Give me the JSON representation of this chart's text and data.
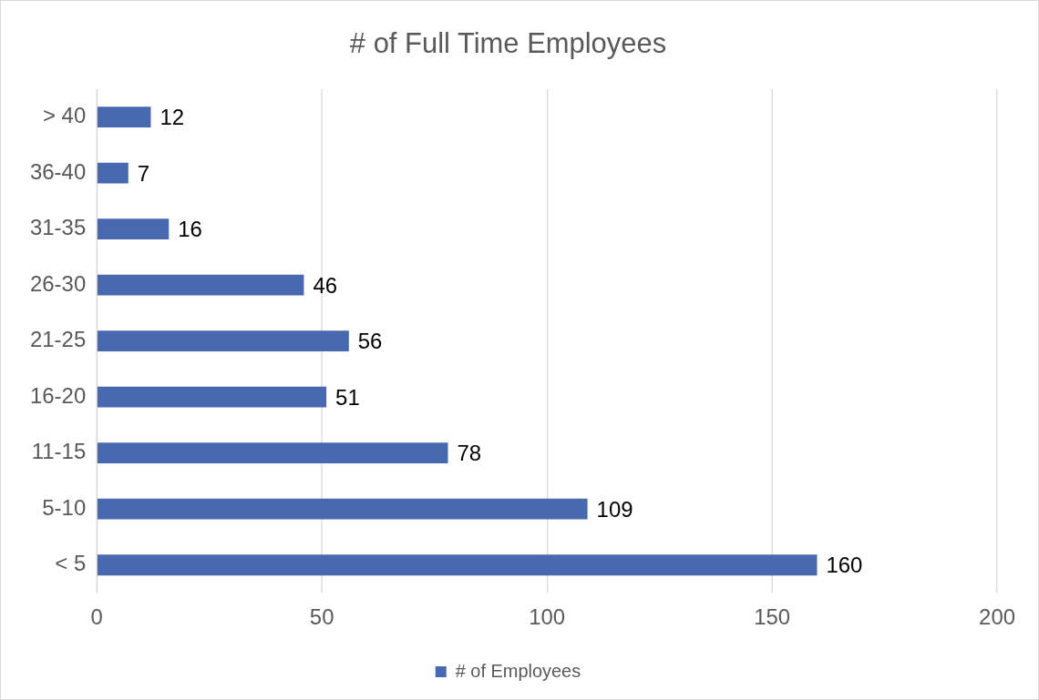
{
  "chart_data": {
    "type": "bar",
    "title": "# of Full Time Employees",
    "orientation": "horizontal",
    "categories": [
      "> 40",
      "36-40",
      "31-35",
      "26-30",
      "21-25",
      "16-20",
      "11-15",
      "5-10",
      "< 5"
    ],
    "series": [
      {
        "name": "# of Employees",
        "color": "#4868b0",
        "values": [
          12,
          7,
          16,
          46,
          56,
          51,
          78,
          109,
          160
        ]
      }
    ],
    "xlim": [
      0,
      200
    ],
    "xticks": [
      0,
      50,
      100,
      150,
      200
    ],
    "grid": "x",
    "legend": "bottom",
    "data_labels": true
  }
}
